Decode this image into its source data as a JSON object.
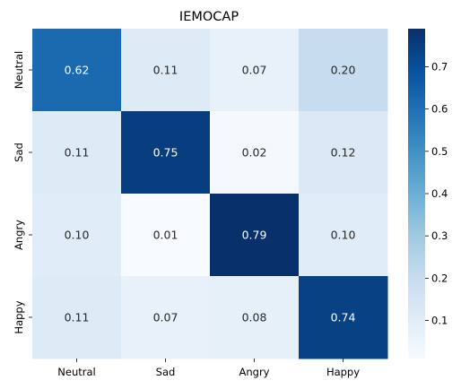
{
  "chart_data": {
    "type": "heatmap",
    "title": "IEMOCAP",
    "x_categories": [
      "Neutral",
      "Sad",
      "Angry",
      "Happy"
    ],
    "y_categories": [
      "Neutral",
      "Sad",
      "Angry",
      "Happy"
    ],
    "values": [
      [
        0.62,
        0.11,
        0.07,
        0.2
      ],
      [
        0.11,
        0.75,
        0.02,
        0.12
      ],
      [
        0.1,
        0.01,
        0.79,
        0.1
      ],
      [
        0.11,
        0.07,
        0.08,
        0.74
      ]
    ],
    "value_labels": [
      [
        "0.62",
        "0.11",
        "0.07",
        "0.20"
      ],
      [
        "0.11",
        "0.75",
        "0.02",
        "0.12"
      ],
      [
        "0.10",
        "0.01",
        "0.79",
        "0.10"
      ],
      [
        "0.11",
        "0.07",
        "0.08",
        "0.74"
      ]
    ],
    "colormap": "Blues",
    "colorbar": {
      "range": [
        0.01,
        0.79
      ],
      "ticks": [
        0.1,
        0.2,
        0.3,
        0.4,
        0.5,
        0.6,
        0.7
      ],
      "tick_labels": [
        "0.1",
        "0.2",
        "0.3",
        "0.4",
        "0.5",
        "0.6",
        "0.7"
      ]
    },
    "grid": false,
    "legend": "colorbar-right"
  }
}
